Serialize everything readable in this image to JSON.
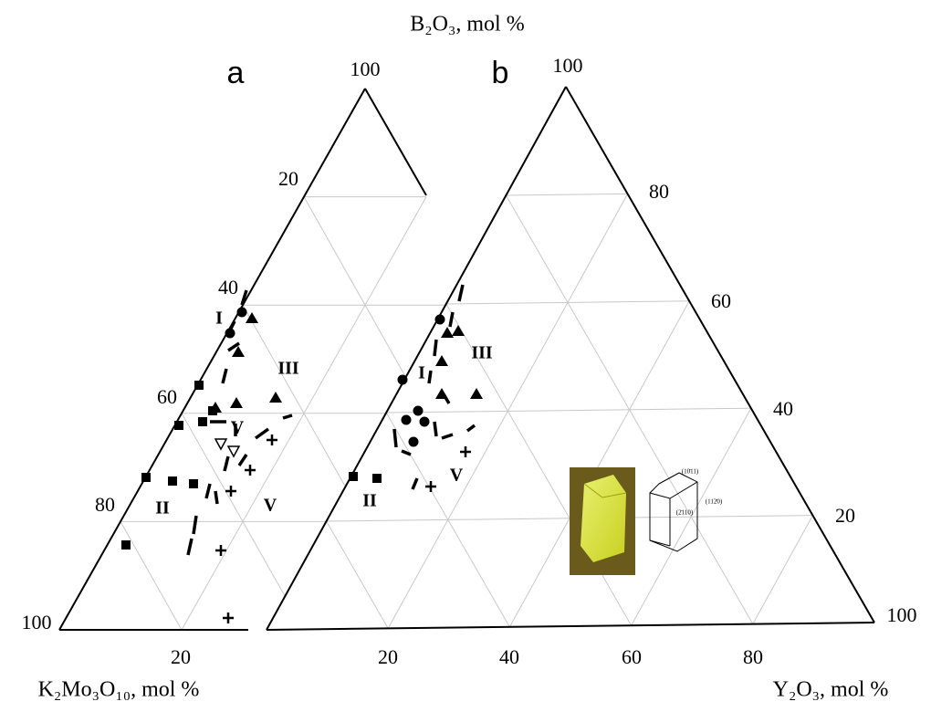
{
  "title": "B₂O₃, mol %",
  "left_axis_label": "K₂Mo₃O₁₀, mol %",
  "right_axis_label": "Y₂O₃, mol %",
  "panel_a": {
    "letter": "a",
    "apex_tick": "100",
    "left_ticks": [
      "20",
      "40",
      "60",
      "80",
      "100"
    ],
    "bottom_ticks": [
      "20"
    ],
    "regions": [
      "I",
      "III",
      "V",
      "II",
      "V"
    ]
  },
  "panel_b": {
    "letter": "b",
    "apex_tick": "100",
    "right_ticks": [
      "80",
      "60",
      "40",
      "20",
      "100"
    ],
    "bottom_ticks": [
      "20",
      "40",
      "60",
      "80"
    ],
    "regions": [
      "I",
      "III",
      "V",
      "II"
    ],
    "crystal_faces": [
      "(10̄11)",
      "(112̄0)",
      "(2̄110)"
    ]
  }
}
